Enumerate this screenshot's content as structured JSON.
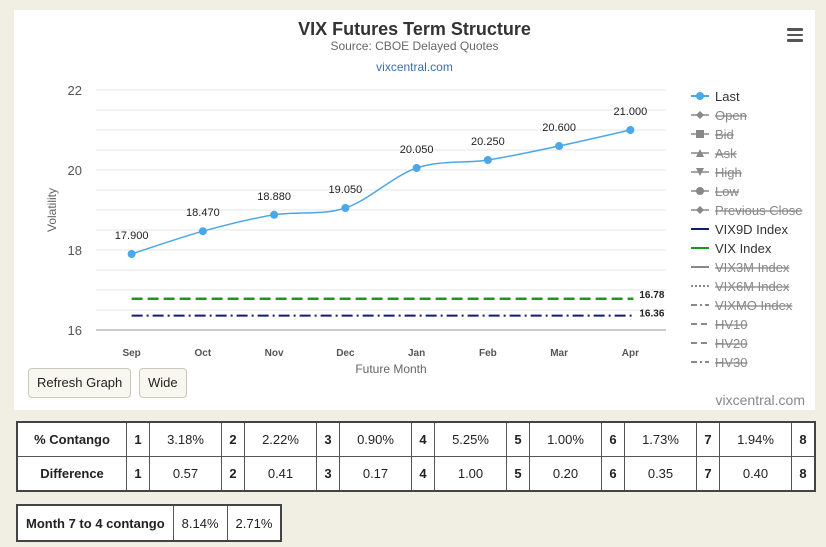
{
  "chart": {
    "title": "VIX Futures Term Structure",
    "subtitle": "Source: CBOE Delayed Quotes",
    "link": "vixcentral.com",
    "credit": "vixcentral.com"
  },
  "chart_data": {
    "type": "line",
    "title": "VIX Futures Term Structure",
    "subtitle": "Source: CBOE Delayed Quotes",
    "xlabel": "Future Month",
    "ylabel": "Volatility",
    "categories": [
      "Sep",
      "Oct",
      "Nov",
      "Dec",
      "Jan",
      "Feb",
      "Mar",
      "Apr"
    ],
    "ylim": [
      16,
      22
    ],
    "yticks": [
      16,
      18,
      20,
      22
    ],
    "grid": true,
    "legend_position": "right",
    "series": [
      {
        "name": "Last",
        "color": "#4aa8e8",
        "values": [
          17.9,
          18.47,
          18.88,
          19.05,
          20.05,
          20.25,
          20.6,
          21.0
        ],
        "labels": [
          "17.900",
          "18.470",
          "18.880",
          "19.050",
          "20.050",
          "20.250",
          "20.600",
          "21.000"
        ]
      },
      {
        "name": "VIX Index",
        "color": "#1a9a1a",
        "constant": 16.78,
        "label": "16.78"
      },
      {
        "name": "VIX9D Index",
        "color": "#101a7a",
        "constant": 16.36,
        "label": "16.36"
      }
    ]
  },
  "legend": [
    {
      "label": "Last",
      "style": "last",
      "hidden": false
    },
    {
      "label": "Open",
      "style": "diamond",
      "hidden": true
    },
    {
      "label": "Bid",
      "style": "square",
      "hidden": true
    },
    {
      "label": "Ask",
      "style": "triangle",
      "hidden": true
    },
    {
      "label": "High",
      "style": "triangle-down",
      "hidden": true
    },
    {
      "label": "Low",
      "style": "circle",
      "hidden": true
    },
    {
      "label": "Previous Close",
      "style": "diamond",
      "hidden": true
    },
    {
      "label": "VIX9D Index",
      "style": "navy",
      "hidden": false
    },
    {
      "label": "VIX Index",
      "style": "green",
      "hidden": false
    },
    {
      "label": "VIX3M Index",
      "style": "solid",
      "hidden": true
    },
    {
      "label": "VIX6M Index",
      "style": "dotted",
      "hidden": true
    },
    {
      "label": "VIXMO Index",
      "style": "dashdot",
      "hidden": true
    },
    {
      "label": "HV10",
      "style": "dash",
      "hidden": true
    },
    {
      "label": "HV20",
      "style": "dash",
      "hidden": true
    },
    {
      "label": "HV30",
      "style": "dashdot",
      "hidden": true
    }
  ],
  "buttons": {
    "refresh": "Refresh Graph",
    "wide": "Wide"
  },
  "contango_table": {
    "rows": [
      {
        "label": "% Contango",
        "cells": [
          [
            "1",
            "3.18%"
          ],
          [
            "2",
            "2.22%"
          ],
          [
            "3",
            "0.90%"
          ],
          [
            "4",
            "5.25%"
          ],
          [
            "5",
            "1.00%"
          ],
          [
            "6",
            "1.73%"
          ],
          [
            "7",
            "1.94%"
          ],
          [
            "8",
            ""
          ]
        ]
      },
      {
        "label": "Difference",
        "cells": [
          [
            "1",
            "0.57"
          ],
          [
            "2",
            "0.41"
          ],
          [
            "3",
            "0.17"
          ],
          [
            "4",
            "1.00"
          ],
          [
            "5",
            "0.20"
          ],
          [
            "6",
            "0.35"
          ],
          [
            "7",
            "0.40"
          ],
          [
            "8",
            ""
          ]
        ]
      }
    ]
  },
  "month74": {
    "label": "Month 7 to 4 contango",
    "value1": "8.14%",
    "value2": "2.71%"
  }
}
